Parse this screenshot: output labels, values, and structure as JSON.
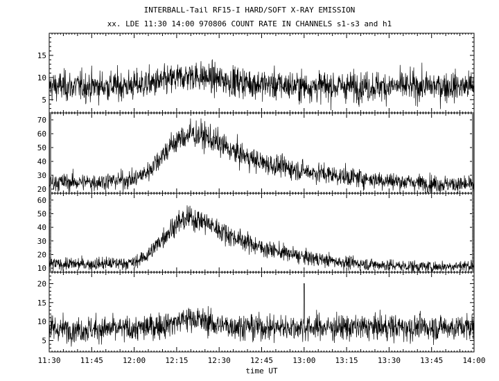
{
  "header": {
    "title": "INTERBALL-Tail RF15-I HARD/SOFT X-RAY EMISSION",
    "subtitle": "xx. LDE 11:30 14:00 970806  COUNT RATE IN CHANNELS s1-s3 and h1"
  },
  "chart_data": {
    "type": "line",
    "xlabel": "time UT",
    "x_range": [
      "11:30",
      "14:00"
    ],
    "x_ticks": [
      "11:30",
      "11:45",
      "12:00",
      "12:15",
      "12:30",
      "12:45",
      "13:00",
      "13:15",
      "13:30",
      "13:45",
      "14:00"
    ],
    "grid": false,
    "line_color": "#000000",
    "panels": [
      {
        "ylim": [
          2,
          20
        ],
        "yticks": [
          5,
          10,
          15
        ],
        "series": [
          {
            "x": [
              "11:30",
              "11:45",
              "12:00",
              "12:10",
              "12:20",
              "12:30",
              "12:45",
              "13:00",
              "13:15",
              "13:30",
              "13:45",
              "14:00"
            ],
            "values": [
              8,
              8,
              8.2,
              9,
              10.5,
              9.5,
              8.5,
              8,
              8,
              8,
              8,
              8
            ]
          }
        ]
      },
      {
        "ylim": [
          17,
          75
        ],
        "yticks": [
          20,
          30,
          40,
          50,
          60,
          70
        ],
        "series": [
          {
            "x": [
              "11:30",
              "11:45",
              "12:00",
              "12:05",
              "12:10",
              "12:15",
              "12:20",
              "12:25",
              "12:30",
              "12:35",
              "12:45",
              "13:00",
              "13:15",
              "13:30",
              "13:45",
              "14:00"
            ],
            "values": [
              25,
              25,
              27,
              33,
              45,
              55,
              60,
              58,
              53,
              47,
              39,
              33,
              29,
              26,
              24,
              23
            ]
          }
        ]
      },
      {
        "ylim": [
          7,
          65
        ],
        "yticks": [
          10,
          20,
          30,
          40,
          50,
          60
        ],
        "series": [
          {
            "x": [
              "11:30",
              "11:45",
              "12:00",
              "12:05",
              "12:10",
              "12:15",
              "12:20",
              "12:25",
              "12:30",
              "12:35",
              "12:45",
              "13:00",
              "13:15",
              "13:30",
              "13:45",
              "14:00"
            ],
            "values": [
              13,
              13,
              14,
              20,
              32,
              43,
              47,
              44,
              38,
              33,
              25,
              18,
              14,
              12,
              11,
              12
            ]
          }
        ]
      },
      {
        "ylim": [
          2,
          23
        ],
        "yticks": [
          5,
          10,
          15,
          20
        ],
        "series": [
          {
            "x": [
              "11:30",
              "11:45",
              "12:00",
              "12:10",
              "12:20",
              "12:30",
              "12:45",
              "13:00",
              "13:15",
              "13:30",
              "13:45",
              "14:00"
            ],
            "values": [
              8,
              8,
              8,
              9,
              11,
              9,
              8.5,
              8.5,
              8.5,
              8.5,
              8.5,
              8.5
            ]
          }
        ]
      }
    ]
  }
}
